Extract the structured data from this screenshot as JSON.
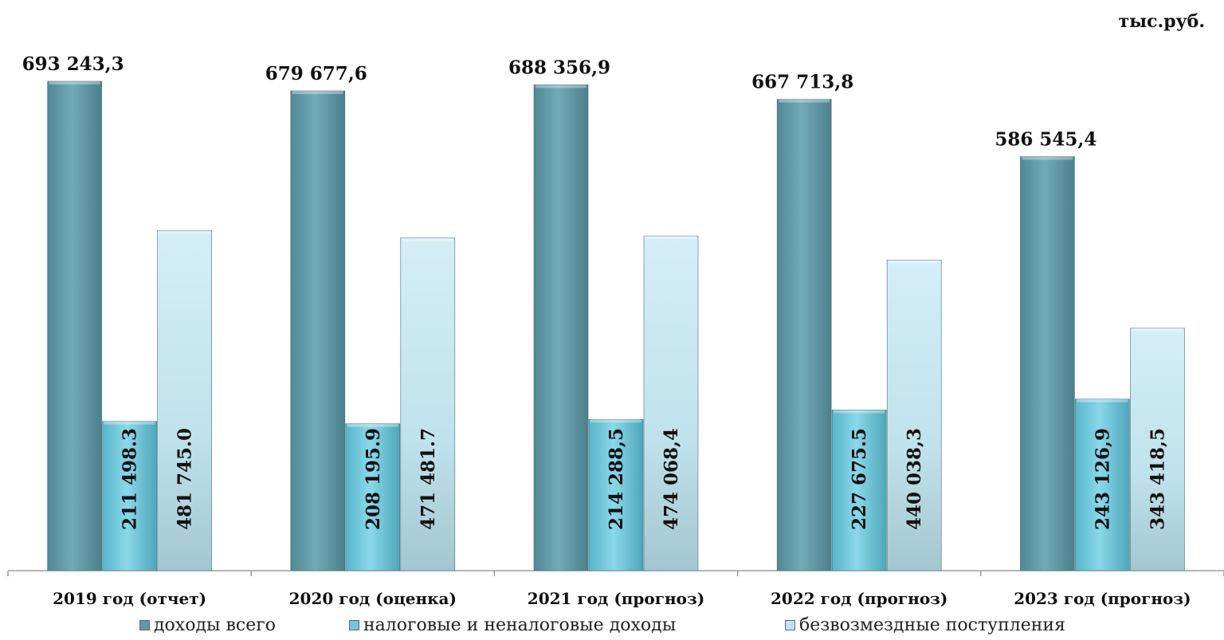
{
  "unit_label": "тыс.руб.",
  "chart_data": {
    "type": "bar",
    "categories": [
      "2019 год (отчет)",
      "2020 год  (оценка)",
      "2021 год (прогноз)",
      "2022 год (прогноз)",
      "2023 год (прогноз)"
    ],
    "series": [
      {
        "name": "доходы всего",
        "values": [
          693243.3,
          679677.6,
          688356.9,
          667713.8,
          586545.4
        ],
        "labels": [
          "693 243,3",
          "679 677,6",
          "688 356,9",
          "667 713,8",
          "586 545,4"
        ],
        "color": "#5f9aa7"
      },
      {
        "name": "налоговые и неналоговые доходы",
        "values": [
          211498.3,
          208195.9,
          214288.5,
          227675.5,
          243126.9
        ],
        "labels": [
          "211 498.3",
          "208 195.9",
          "214 288,5",
          "227 675.5",
          "243 126,9"
        ],
        "color": "#6ec8dc"
      },
      {
        "name": "безвозмездные поступления",
        "values": [
          481745.0,
          471481.7,
          474068.4,
          440038.3,
          343418.5
        ],
        "labels": [
          "481 745.0",
          "471 481.7",
          "474 068,4",
          "440 038,3",
          "343 418,5"
        ],
        "color": "#bfe3ee"
      }
    ],
    "ylim": [
      0,
      700000
    ],
    "grid": false,
    "legend_position": "bottom"
  }
}
